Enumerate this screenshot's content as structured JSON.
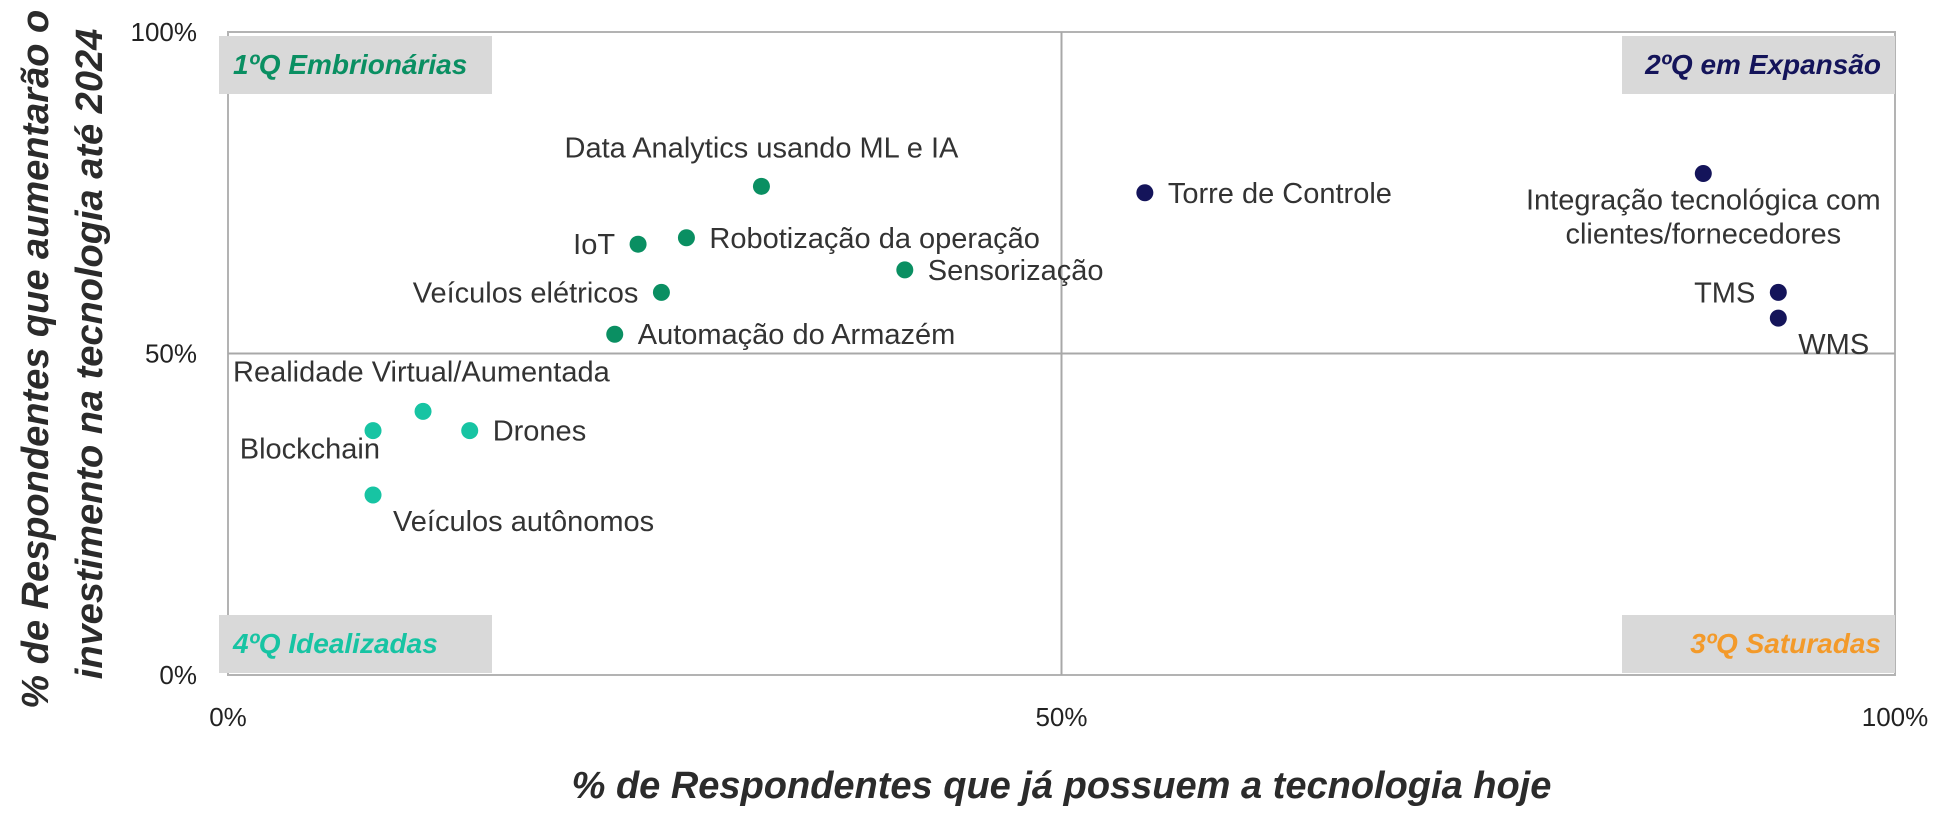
{
  "chart_data": {
    "type": "scatter",
    "title": "",
    "xlabel": "% de Respondentes que já possuem a tecnologia hoje",
    "ylabel_lines": [
      "% de Respondentes que aumentarão o",
      "investimento na tecnologia até 2024"
    ],
    "xlim": [
      0,
      100
    ],
    "ylim": [
      0,
      100
    ],
    "x_ticks": [
      {
        "value": 0,
        "label": "0%"
      },
      {
        "value": 50,
        "label": "50%"
      },
      {
        "value": 100,
        "label": "100%"
      }
    ],
    "y_ticks": [
      {
        "value": 0,
        "label": "0%"
      },
      {
        "value": 50,
        "label": "50%"
      },
      {
        "value": 100,
        "label": "100%"
      }
    ],
    "grid": false,
    "divider_lines": {
      "x": 50,
      "y": 50
    },
    "quadrants": [
      {
        "name": "1ºQ Embrionárias",
        "position": "top-left",
        "color": "#0a8f62"
      },
      {
        "name": "2ºQ em Expansão",
        "position": "top-right",
        "color": "#14145a"
      },
      {
        "name": "3ºQ Saturadas",
        "position": "bottom-right",
        "color": "#f39a2a"
      },
      {
        "name": "4ºQ Idealizadas",
        "position": "bottom-left",
        "color": "#17c4a3"
      }
    ],
    "series": [
      {
        "quadrant": "1ºQ Embrionárias",
        "color": "#0a8f62",
        "points": [
          {
            "label": "Data Analytics usando ML e IA",
            "x": 32,
            "y": 76,
            "label_pos": "above"
          },
          {
            "label": "IoT",
            "x": 24.6,
            "y": 67,
            "label_pos": "left"
          },
          {
            "label": "Robotização da operação",
            "x": 27.5,
            "y": 68,
            "label_pos": "right"
          },
          {
            "label": "Sensorização",
            "x": 40.6,
            "y": 63,
            "label_pos": "right"
          },
          {
            "label": "Veículos elétricos",
            "x": 26,
            "y": 59.5,
            "label_pos": "left"
          },
          {
            "label": "Automação do Armazém",
            "x": 23.2,
            "y": 53,
            "label_pos": "right"
          }
        ]
      },
      {
        "quadrant": "2ºQ em Expansão",
        "color": "#14145a",
        "points": [
          {
            "label": "Torre de Controle",
            "x": 55,
            "y": 75,
            "label_pos": "right"
          },
          {
            "label": "Integração tecnológica com\nclientes/fornecedores",
            "x": 88.5,
            "y": 78,
            "label_pos": "below"
          },
          {
            "label": "TMS",
            "x": 93,
            "y": 59.5,
            "label_pos": "left"
          },
          {
            "label": "WMS",
            "x": 93,
            "y": 55.5,
            "label_pos": "below-right"
          }
        ]
      },
      {
        "quadrant": "4ºQ Idealizadas",
        "color": "#17c4a3",
        "points": [
          {
            "label": "Realidade Virtual/Aumentada",
            "x": 11.7,
            "y": 41,
            "label_pos": "above-left"
          },
          {
            "label": "Blockchain",
            "x": 8.7,
            "y": 38,
            "label_pos": "below-left"
          },
          {
            "label": "Drones",
            "x": 14.5,
            "y": 38,
            "label_pos": "right"
          },
          {
            "label": "Veículos autônomos",
            "x": 8.7,
            "y": 28,
            "label_pos": "below-right"
          }
        ]
      }
    ]
  }
}
